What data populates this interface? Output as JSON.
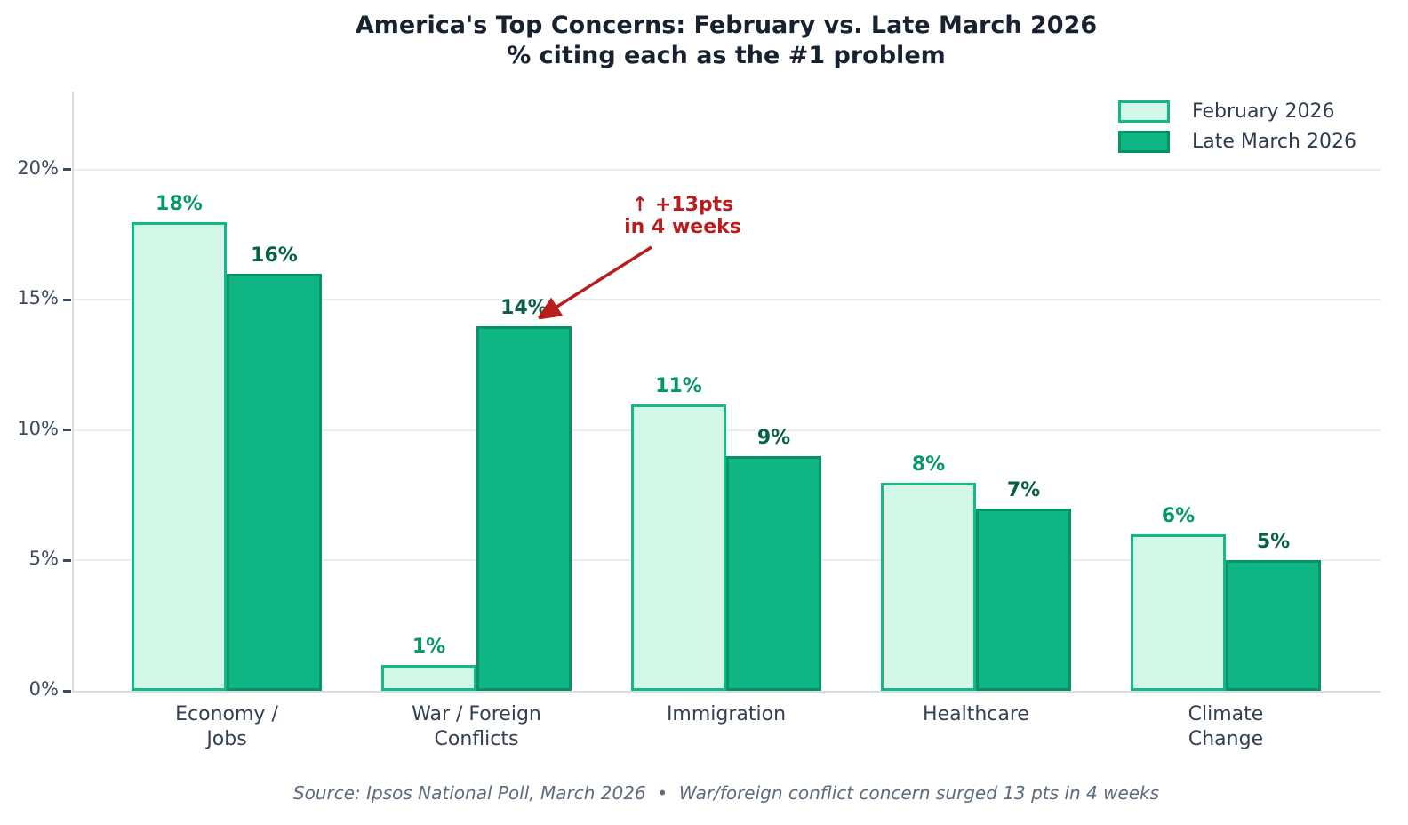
{
  "title": {
    "line1": "America's Top Concerns: February vs. Late March 2026",
    "line2": "% citing each as the #1 problem"
  },
  "chart_data": {
    "type": "bar",
    "categories": [
      "Economy /\nJobs",
      "War / Foreign\nConflicts",
      "Immigration",
      "Healthcare",
      "Climate\nChange"
    ],
    "series": [
      {
        "name": "February 2026",
        "values": [
          18,
          1,
          11,
          8,
          6
        ],
        "fill": "#d3f7e6",
        "edge": "#12b888",
        "label_color": "#059669"
      },
      {
        "name": "Late March 2026",
        "values": [
          16,
          14,
          9,
          7,
          5
        ],
        "fill": "#10b584",
        "edge": "#079368",
        "label_color": "#065f46"
      }
    ],
    "value_suffix": "%",
    "ylim": [
      0,
      23
    ],
    "yticks": [
      0,
      5,
      10,
      15,
      20
    ],
    "ytick_suffix": "%",
    "grid": true,
    "legend_position": "upper right",
    "annotation": {
      "line1": "↑ +13pts",
      "line2": "in 4 weeks",
      "color": "#b91c1c"
    }
  },
  "footer": "Source: Ipsos National Poll, March 2026  •  War/foreign conflict concern surged 13 pts in 4 weeks",
  "colors": {
    "title": "#17212f",
    "tick_label": "#3c4a5e",
    "category_label": "#333f52",
    "gridline": "#ededf0",
    "spine": "#d9dde2",
    "annotation_red": "#b91c1c",
    "footer": "#5d6b7c",
    "background": "#ffffff"
  }
}
